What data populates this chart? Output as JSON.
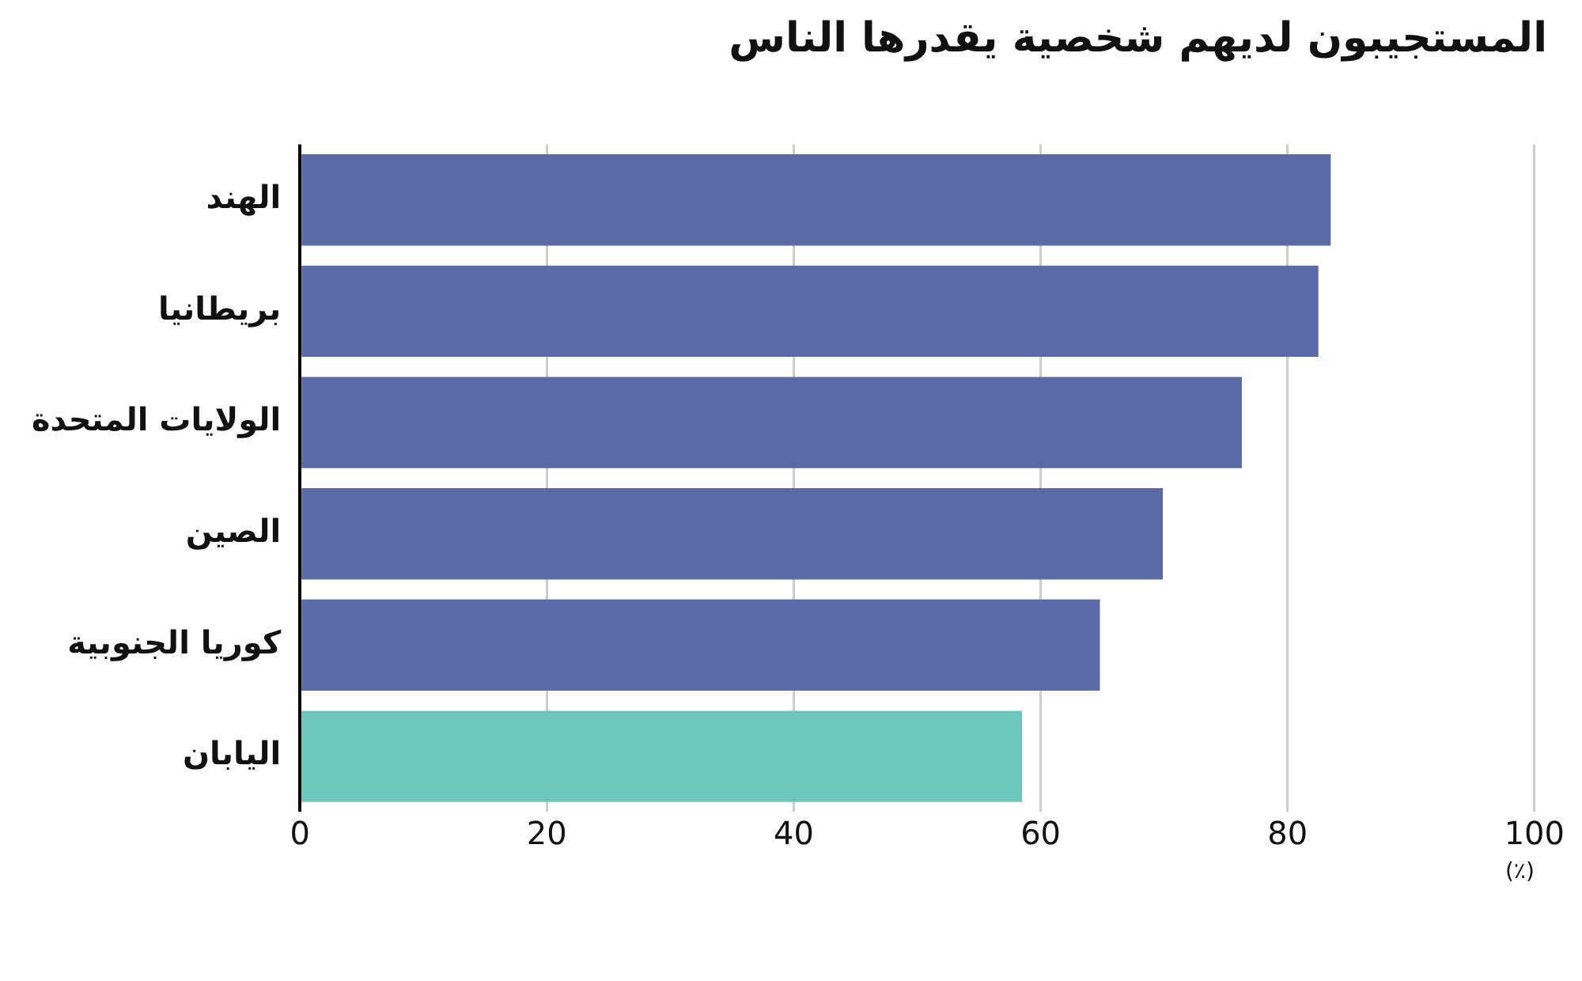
{
  "chart_data": {
    "type": "bar",
    "orientation": "horizontal",
    "title": "المستجيبون لديهم شخصية يقدرها الناس",
    "xlabel": "(٪)",
    "categories": [
      "الهند",
      "بريطانيا",
      "الولايات المتحدة",
      "الصين",
      "كوريا الجنوبية",
      "اليابان"
    ],
    "values": [
      83.5,
      82.5,
      76.3,
      69.9,
      64.8,
      58.5
    ],
    "colors": [
      "#5a6aa6",
      "#5a6aa6",
      "#5a6aa6",
      "#5a6aa6",
      "#5a6aa6",
      "#6cc6bb"
    ],
    "xlim": [
      0,
      100
    ],
    "xticks": [
      0,
      20,
      40,
      60,
      80,
      100
    ],
    "grid": "x",
    "legend": false
  }
}
